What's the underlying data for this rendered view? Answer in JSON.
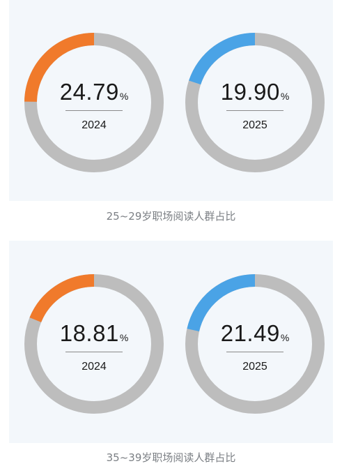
{
  "colors": {
    "panel_bg": "#f3f7fb",
    "track": "#bdbdbd",
    "orange": "#f07a2b",
    "blue": "#4aa3e6",
    "text": "#1a1a1a",
    "caption": "#7b7f84"
  },
  "unit": "%",
  "chart_data": [
    {
      "type": "pie",
      "title": "25~29岁职场阅读人群占比",
      "categories": [
        "2024",
        "2025"
      ],
      "values": [
        24.79,
        19.9
      ],
      "value_labels": [
        "24.79",
        "19.90"
      ],
      "colors": [
        "#f07a2b",
        "#4aa3e6"
      ]
    },
    {
      "type": "pie",
      "title": "35~39岁职场阅读人群占比",
      "categories": [
        "2024",
        "2025"
      ],
      "values": [
        18.81,
        21.49
      ],
      "value_labels": [
        "18.81",
        "21.49"
      ],
      "colors": [
        "#f07a2b",
        "#4aa3e6"
      ]
    }
  ]
}
